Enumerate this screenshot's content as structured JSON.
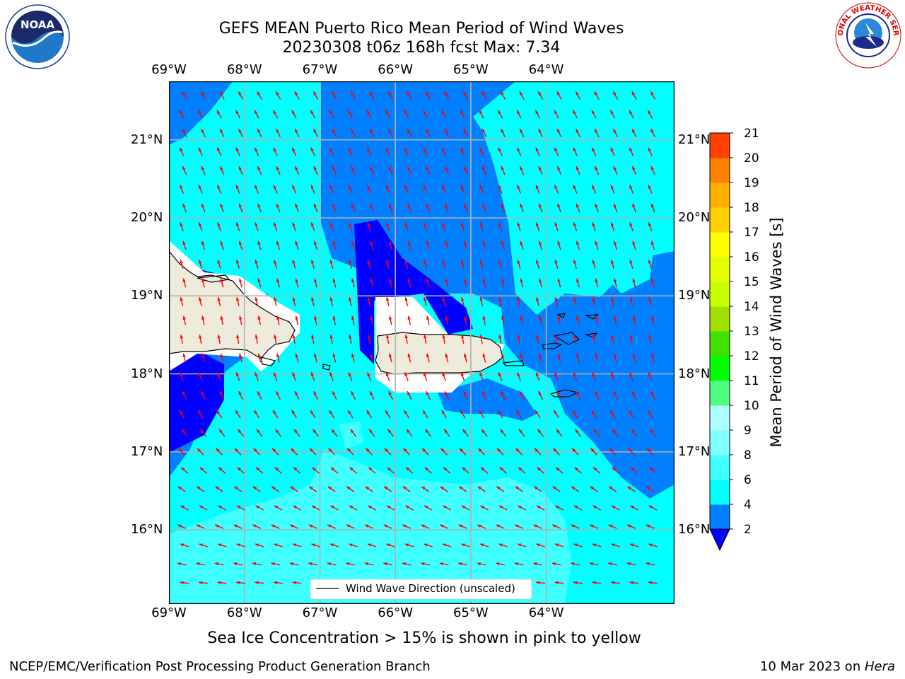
{
  "header": {
    "title_line1": "GEFS MEAN Puerto Rico Mean Period of Wind Waves",
    "title_line2": "20230308 t06z 168h fcst   Max: 7.34"
  },
  "logos": {
    "left": {
      "icon": "noaa-logo",
      "text": "NOAA"
    },
    "right": {
      "icon": "nws-logo",
      "text": "NATIONAL WEATHER SERVICE"
    }
  },
  "map": {
    "lon_ticks": [
      "69°W",
      "68°W",
      "67°W",
      "66°W",
      "65°W",
      "64°W"
    ],
    "lat_ticks": [
      "21°N",
      "20°N",
      "19°N",
      "18°N",
      "17°N",
      "16°N"
    ],
    "extent": {
      "lon": [
        -69.0,
        -62.3
      ],
      "lat": [
        15.05,
        21.75
      ]
    },
    "legend_label": "Wind Wave Direction (unscaled)",
    "arrow_color": "#ff0000"
  },
  "colorbar": {
    "label": "Mean Period of Wind Waves [s]",
    "ticks": [
      "2",
      "4",
      "6",
      "8",
      "9",
      "10",
      "11",
      "12",
      "13",
      "14",
      "15",
      "16",
      "17",
      "18",
      "19",
      "20",
      "21"
    ],
    "bounds": [
      2,
      4,
      6,
      8,
      9,
      10,
      11,
      12,
      13,
      14,
      15,
      16,
      17,
      18,
      19,
      20,
      21
    ],
    "colors": [
      "#0080ff",
      "#00ffff",
      "#40ffff",
      "#80ffff",
      "#b0ffff",
      "#50ff80",
      "#00ff00",
      "#40e000",
      "#a0e000",
      "#c8ff00",
      "#e6ff00",
      "#ffff00",
      "#ffd000",
      "#ffb000",
      "#ff8000",
      "#ff4000",
      "#ff0000"
    ],
    "under_color": "#0000ff"
  },
  "footer": {
    "subtitle": "Sea Ice Concentration > 15% is shown in pink to yellow",
    "left": "NCEP/EMC/Verification Post Processing Product Generation Branch",
    "right_date": "10 Mar 2023 on ",
    "right_machine": "Hera"
  }
}
